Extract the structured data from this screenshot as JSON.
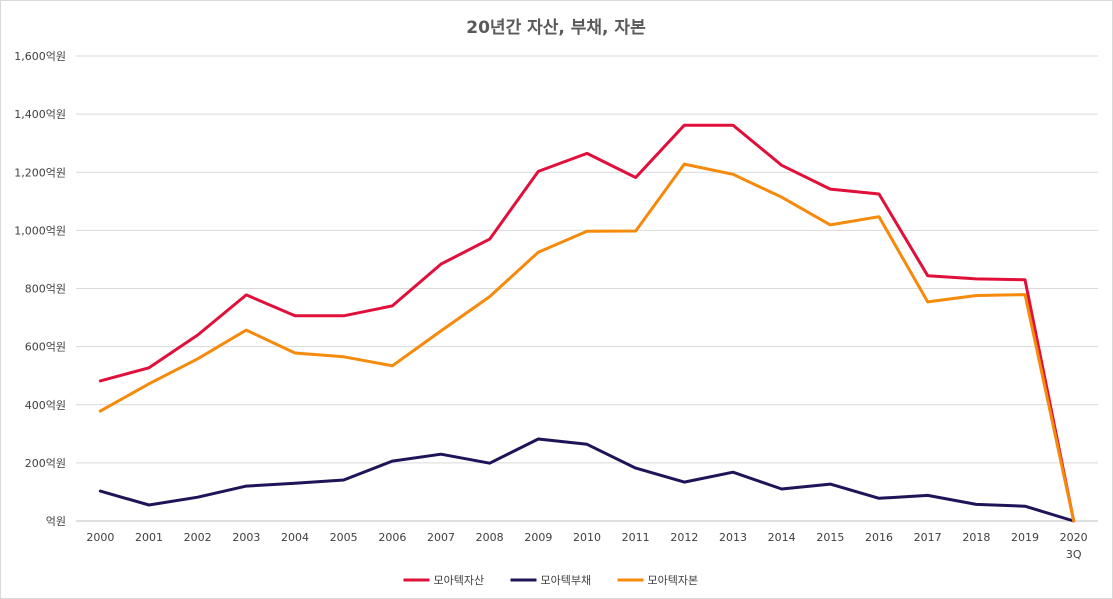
{
  "chart_data": {
    "type": "line",
    "title": "20년간 자산, 부채, 자본",
    "categories": [
      "2000",
      "2001",
      "2002",
      "2003",
      "2004",
      "2005",
      "2006",
      "2007",
      "2008",
      "2009",
      "2010",
      "2011",
      "2012",
      "2013",
      "2014",
      "2015",
      "2016",
      "2017",
      "2018",
      "2019",
      "2020\n3Q"
    ],
    "ylim": [
      0,
      1600
    ],
    "yticks": [
      0,
      200,
      400,
      600,
      800,
      1000,
      1200,
      1400,
      1600
    ],
    "ytick_labels": [
      "억원",
      "200억원",
      "400억원",
      "600억원",
      "800억원",
      "1,000억원",
      "1,200억원",
      "1,400억원",
      "1,600억원"
    ],
    "grid": true,
    "legend_position": "bottom",
    "series": [
      {
        "name": "모아텍자산",
        "color": "#e0103b",
        "values": [
          482,
          527,
          640,
          778,
          706,
          706,
          740,
          884,
          970,
          1203,
          1265,
          1182,
          1362,
          1362,
          1224,
          1142,
          1125,
          844,
          833,
          830,
          0
        ]
      },
      {
        "name": "모아텍부채",
        "color": "#1f1457",
        "values": [
          103,
          55,
          82,
          120,
          130,
          141,
          206,
          230,
          199,
          282,
          264,
          182,
          134,
          168,
          110,
          127,
          78,
          88,
          57,
          51,
          0
        ]
      },
      {
        "name": "모아텍자본",
        "color": "#f58a0b",
        "values": [
          378,
          472,
          558,
          657,
          578,
          565,
          534,
          654,
          772,
          925,
          997,
          998,
          1228,
          1193,
          1114,
          1019,
          1047,
          754,
          776,
          779,
          0
        ]
      }
    ]
  }
}
